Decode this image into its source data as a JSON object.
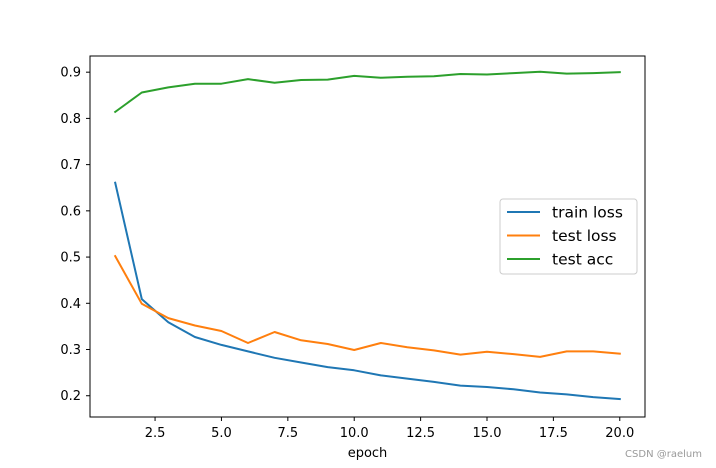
{
  "chart_data": {
    "type": "line",
    "xlabel": "epoch",
    "ylabel": "",
    "xlim": [
      0.05,
      20.95
    ],
    "ylim": [
      0.154,
      0.935
    ],
    "xticks": [
      2.5,
      5.0,
      7.5,
      10.0,
      12.5,
      15.0,
      17.5,
      20.0
    ],
    "xtick_labels": [
      "2.5",
      "5.0",
      "7.5",
      "10.0",
      "12.5",
      "15.0",
      "17.5",
      "20.0"
    ],
    "yticks": [
      0.2,
      0.3,
      0.4,
      0.5,
      0.6,
      0.7,
      0.8,
      0.9
    ],
    "ytick_labels": [
      "0.2",
      "0.3",
      "0.4",
      "0.5",
      "0.6",
      "0.7",
      "0.8",
      "0.9"
    ],
    "grid": false,
    "legend_position": "center-right",
    "x": [
      1,
      2,
      3,
      4,
      5,
      6,
      7,
      8,
      9,
      10,
      11,
      12,
      13,
      14,
      15,
      16,
      17,
      18,
      19,
      20
    ],
    "series": [
      {
        "name": "train loss",
        "color": "#1f77b4",
        "values": [
          0.661,
          0.409,
          0.359,
          0.327,
          0.31,
          0.296,
          0.282,
          0.272,
          0.262,
          0.255,
          0.244,
          0.237,
          0.23,
          0.222,
          0.219,
          0.214,
          0.207,
          0.203,
          0.197,
          0.193
        ]
      },
      {
        "name": "test loss",
        "color": "#ff7f0e",
        "values": [
          0.502,
          0.399,
          0.368,
          0.352,
          0.34,
          0.314,
          0.338,
          0.32,
          0.312,
          0.299,
          0.314,
          0.305,
          0.298,
          0.289,
          0.295,
          0.29,
          0.284,
          0.296,
          0.296,
          0.291
        ]
      },
      {
        "name": "test acc",
        "color": "#2ca02c",
        "values": [
          0.814,
          0.856,
          0.867,
          0.875,
          0.875,
          0.885,
          0.877,
          0.883,
          0.884,
          0.892,
          0.888,
          0.89,
          0.891,
          0.896,
          0.895,
          0.898,
          0.901,
          0.897,
          0.898,
          0.9
        ]
      }
    ]
  },
  "watermark": "CSDN @raelum"
}
